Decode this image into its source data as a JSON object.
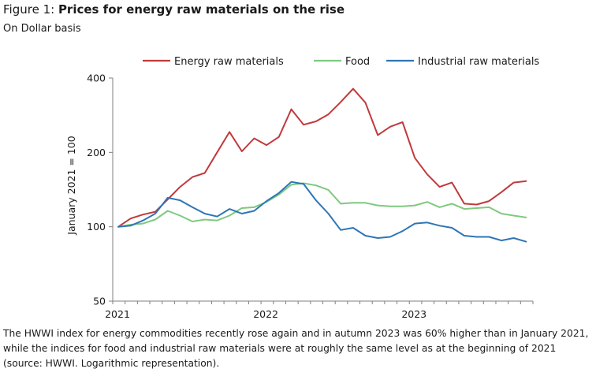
{
  "figure": {
    "prefix": "Figure 1: ",
    "title": "Prices for energy raw materials on the rise",
    "subtitle": "On Dollar basis",
    "caption": "The HWWI index for energy commodities recently rose again and in autumn 2023 was 60% higher than in January 2021, while the indices for food and industrial raw materials were at roughly the same level as at the beginning of 2021 (source: HWWI. Logarithmic representation)."
  },
  "chart_data": {
    "type": "line",
    "title": "Prices for energy raw materials on the rise",
    "subtitle": "On Dollar basis",
    "xlabel": "",
    "ylabel": "January  2021 = 100",
    "y_scale": "log",
    "ylim": [
      50,
      400
    ],
    "y_ticks": [
      50,
      100,
      200,
      400
    ],
    "y_tick_labels": [
      "50",
      "100",
      "200",
      "400"
    ],
    "x_tick_labels": [
      "2021",
      "2022",
      "2023"
    ],
    "x_tick_label_months": [
      0,
      12,
      24
    ],
    "xlim_months": [
      0,
      34
    ],
    "x_unit": "months since January 2021",
    "grid": false,
    "legend_position": "top",
    "series": [
      {
        "name": "Energy raw materials",
        "color": "#c0393b",
        "values": [
          100,
          108,
          112,
          115,
          129,
          145,
          159,
          165,
          200,
          242,
          202,
          228,
          214,
          231,
          299,
          259,
          267,
          285,
          320,
          362,
          318,
          235,
          254,
          265,
          190,
          163,
          145,
          151,
          124,
          123,
          127,
          138,
          151,
          153
        ]
      },
      {
        "name": "Food",
        "color": "#7fc97f",
        "values": [
          100,
          102,
          103,
          107,
          116,
          111,
          105,
          107,
          106,
          111,
          119,
          120,
          126,
          135,
          148,
          150,
          147,
          141,
          124,
          125,
          125,
          122,
          121,
          121,
          122,
          126,
          120,
          124,
          118,
          119,
          120,
          113,
          111,
          109
        ]
      },
      {
        "name": "Industrial raw materials",
        "color": "#2e75b6",
        "values": [
          100,
          101,
          106,
          113,
          131,
          128,
          120,
          113,
          110,
          118,
          113,
          116,
          127,
          137,
          152,
          149,
          128,
          113,
          97,
          99,
          92,
          90,
          91,
          96,
          103,
          104,
          101,
          99,
          92,
          91,
          91,
          88,
          90,
          87
        ]
      }
    ]
  }
}
